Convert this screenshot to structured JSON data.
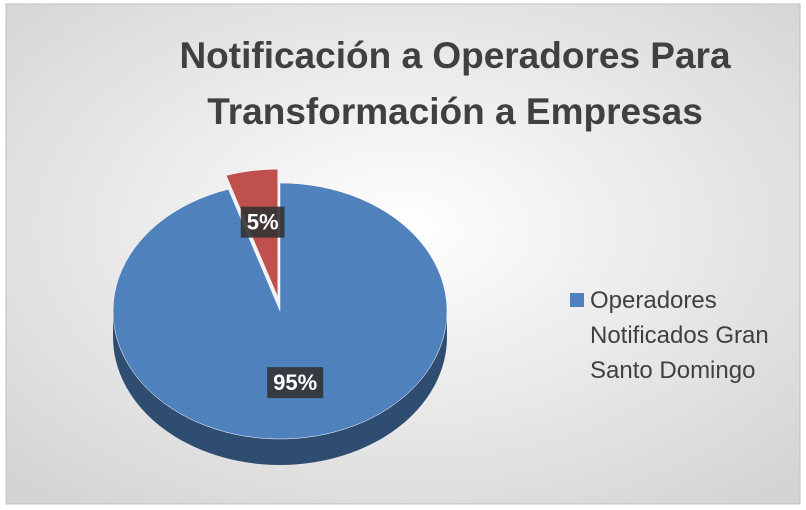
{
  "chart_data": {
    "type": "pie",
    "title": "Notificación a Operadores Para Transformación a Empresas",
    "categories": [
      "Operadores Notificados Gran Santo Domingo",
      null
    ],
    "values": [
      95,
      5
    ],
    "value_labels": [
      "95%",
      "5%"
    ],
    "colors": [
      "#4f81bd",
      "#c0504d"
    ],
    "legend": "right"
  }
}
